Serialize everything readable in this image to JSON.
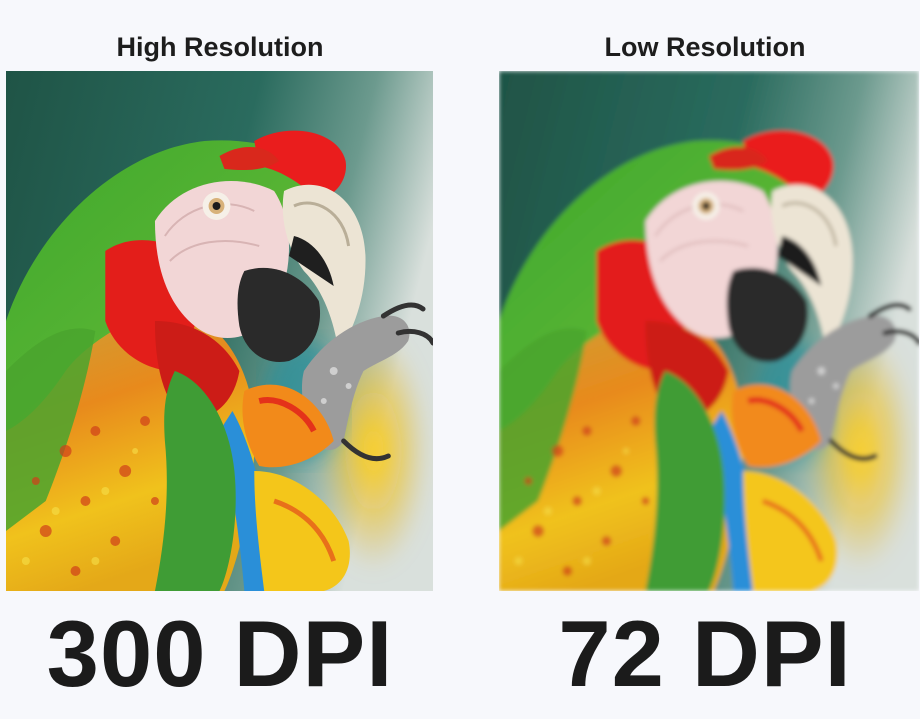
{
  "left": {
    "heading": "High Resolution",
    "dpi_label": "300 DPI",
    "image_name": "parrot-photo-sharp"
  },
  "right": {
    "heading": "Low Resolution",
    "dpi_label": "72 DPI",
    "image_name": "parrot-photo-blurred"
  },
  "colors": {
    "background": "#f7f8fc",
    "text": "#1b1b1b",
    "parrot_red": "#e8201c",
    "parrot_green": "#48a830",
    "parrot_yellow": "#f2c418",
    "parrot_blue": "#2a8fd8",
    "backdrop_teal": "#1e5a4e"
  }
}
